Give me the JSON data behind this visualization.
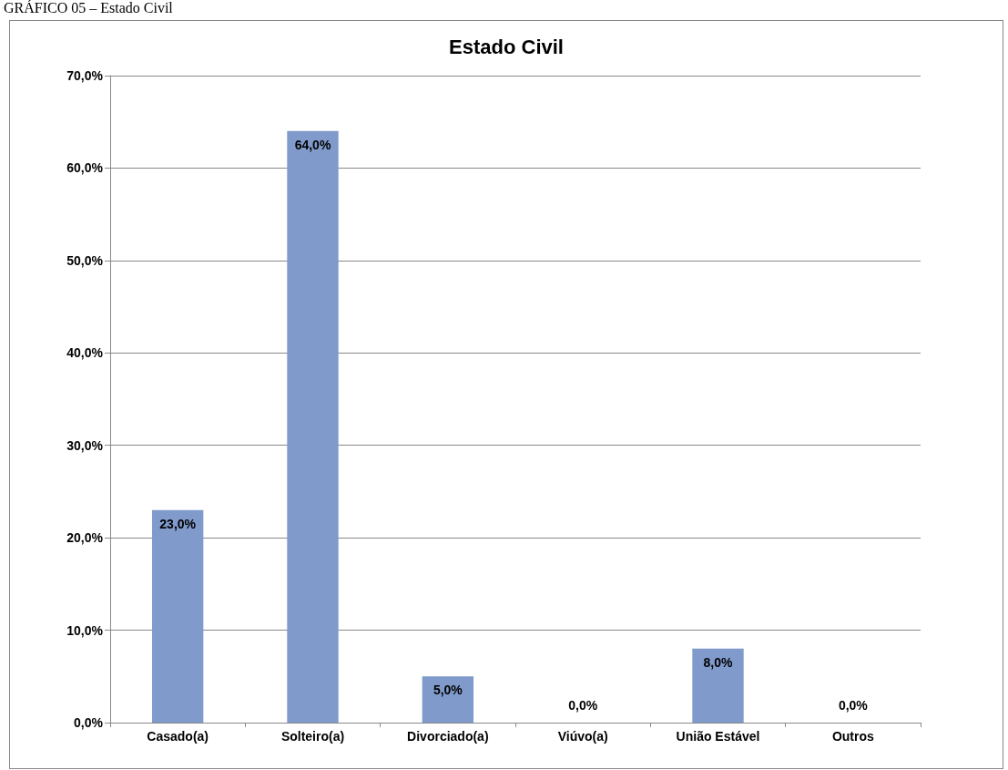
{
  "chart_data": {
    "type": "bar",
    "title": "Estado Civil",
    "annotations": [
      "GRÁFICO 05 – Estado Civil"
    ],
    "categories": [
      "Casado(a)",
      "Solteiro(a)",
      "Divorciado(a)",
      "Viúvo(a)",
      "União Estável",
      "Outros"
    ],
    "values": [
      23,
      64,
      5,
      0,
      8,
      0
    ],
    "color": "#7f9acb",
    "value_labels": [
      "23,0%",
      "64,0%",
      "5,0%",
      "0,0%",
      "8,0%",
      "0,0%"
    ],
    "ylim": [
      0,
      70
    ],
    "yticks": [
      {
        "value": 0,
        "label": "0,0%"
      },
      {
        "value": 10,
        "label": "10,0%"
      },
      {
        "value": 20,
        "label": "20,0%"
      },
      {
        "value": 30,
        "label": "30,0%"
      },
      {
        "value": 40,
        "label": "40,0%"
      },
      {
        "value": 50,
        "label": "50,0%"
      },
      {
        "value": 60,
        "label": "60,0%"
      },
      {
        "value": 70,
        "label": "70,0%"
      }
    ],
    "grid": "y"
  }
}
